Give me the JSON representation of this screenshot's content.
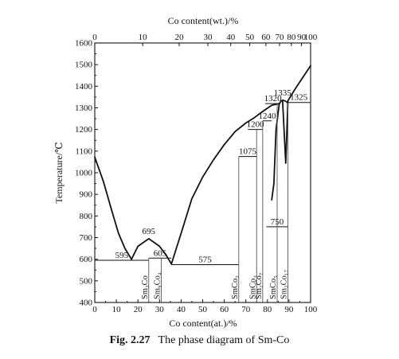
{
  "chart_data": {
    "type": "line",
    "title": "",
    "xlabel": "Co content(at.)/%",
    "x2label": "Co content(wt.)/%",
    "ylabel": "Temperature/℃",
    "xlim": [
      0,
      100
    ],
    "ylim": [
      400,
      1600
    ],
    "x_ticks": [
      0,
      10,
      20,
      30,
      40,
      50,
      60,
      70,
      80,
      90,
      100
    ],
    "x2_ticks": [
      {
        "wt": 0,
        "at": 0,
        "label": "0"
      },
      {
        "wt": 10,
        "at": 22.2,
        "label": "10"
      },
      {
        "wt": 20,
        "at": 39.1,
        "label": "20"
      },
      {
        "wt": 30,
        "at": 52.4,
        "label": "30"
      },
      {
        "wt": 40,
        "at": 63.0,
        "label": "40"
      },
      {
        "wt": 50,
        "at": 71.8,
        "label": "50"
      },
      {
        "wt": 60,
        "at": 79.3,
        "label": "60"
      },
      {
        "wt": 70,
        "at": 85.6,
        "label": "70"
      },
      {
        "wt": 80,
        "at": 91.1,
        "label": "80"
      },
      {
        "wt": 90,
        "at": 95.8,
        "label": "90"
      },
      {
        "wt": 100,
        "at": 100,
        "label": "100"
      }
    ],
    "y_ticks": [
      400,
      500,
      600,
      700,
      800,
      900,
      1000,
      1100,
      1200,
      1300,
      1400,
      1500,
      1600
    ],
    "series": [
      {
        "name": "",
        "type": "liquidus",
        "x": [
          0,
          4,
          8,
          11,
          14,
          17
        ],
        "y": [
          1072,
          960,
          820,
          720,
          650,
          600
        ]
      },
      {
        "name": "",
        "type": "liquidus",
        "x": [
          17,
          20,
          25,
          30,
          33,
          35.5
        ],
        "y": [
          600,
          660,
          695,
          660,
          620,
          578
        ]
      },
      {
        "name": "",
        "type": "liquidus",
        "x": [
          35.5,
          40,
          45,
          50,
          55,
          60,
          65,
          70,
          74,
          78,
          82,
          85.5
        ],
        "y": [
          578,
          720,
          880,
          980,
          1060,
          1130,
          1190,
          1230,
          1255,
          1285,
          1312,
          1320
        ]
      },
      {
        "name": "",
        "type": "liquidus",
        "x": [
          85.5,
          86.5,
          87.5,
          88.5
        ],
        "y": [
          1320,
          1333,
          1335,
          1330
        ]
      },
      {
        "name": "",
        "type": "liquidus",
        "x": [
          89,
          93,
          97,
          100
        ],
        "y": [
          1325,
          1390,
          1450,
          1495
        ]
      },
      {
        "name": "",
        "type": "solidus",
        "x": [
          85.5,
          84,
          83,
          82
        ],
        "y": [
          1320,
          1200,
          950,
          875
        ]
      },
      {
        "name": "",
        "type": "solidus",
        "x": [
          87,
          88.5
        ],
        "y": [
          1335,
          1045
        ]
      },
      {
        "name": "",
        "type": "solidus",
        "x": [
          88.5,
          89.5
        ],
        "y": [
          1045,
          1330
        ]
      }
    ],
    "horizontal_lines": [
      {
        "label": "595",
        "y": 595,
        "x0": 0,
        "x1": 25
      },
      {
        "label": "605",
        "y": 605,
        "x0": 25,
        "x1": 35.5
      },
      {
        "label": "575",
        "y": 575,
        "x0": 35.5,
        "x1": 66.7
      },
      {
        "label": "1075",
        "y": 1075,
        "x0": 66.7,
        "x1": 75
      },
      {
        "label": "1200",
        "y": 1200,
        "x0": 71,
        "x1": 77.8
      },
      {
        "label": "1240",
        "y": 1240,
        "x0": 77.8,
        "x1": 82
      },
      {
        "label": "1320",
        "y": 1320,
        "x0": 79,
        "x1": 86
      },
      {
        "label": "750",
        "y": 750,
        "x0": 79.5,
        "x1": 89.5
      },
      {
        "label": "1325",
        "y": 1325,
        "x0": 89,
        "x1": 100
      }
    ],
    "peak_labels": [
      {
        "label": "695",
        "x": 25,
        "y": 695
      },
      {
        "label": "1335",
        "x": 87,
        "y": 1335
      }
    ],
    "phases": [
      {
        "label": "Sm₃Co",
        "x": 25,
        "top": 605
      },
      {
        "label": "Sm₉Co₄",
        "x": 30.8,
        "top": 605
      },
      {
        "label": "SmCo₂",
        "x": 66.7,
        "top": 1075
      },
      {
        "label": "SmCo₃",
        "x": 75,
        "top": 1200
      },
      {
        "label": "Sm₂Co₇",
        "x": 77.8,
        "top": 1240
      },
      {
        "label": "SmCo₅",
        "x": 84.5,
        "top": 1320
      },
      {
        "label": "Sm₂Co₁₇",
        "x": 89.5,
        "top": 1325
      }
    ]
  },
  "caption": {
    "number": "Fig. 2.27",
    "text": "The phase diagram of Sm-Co"
  }
}
